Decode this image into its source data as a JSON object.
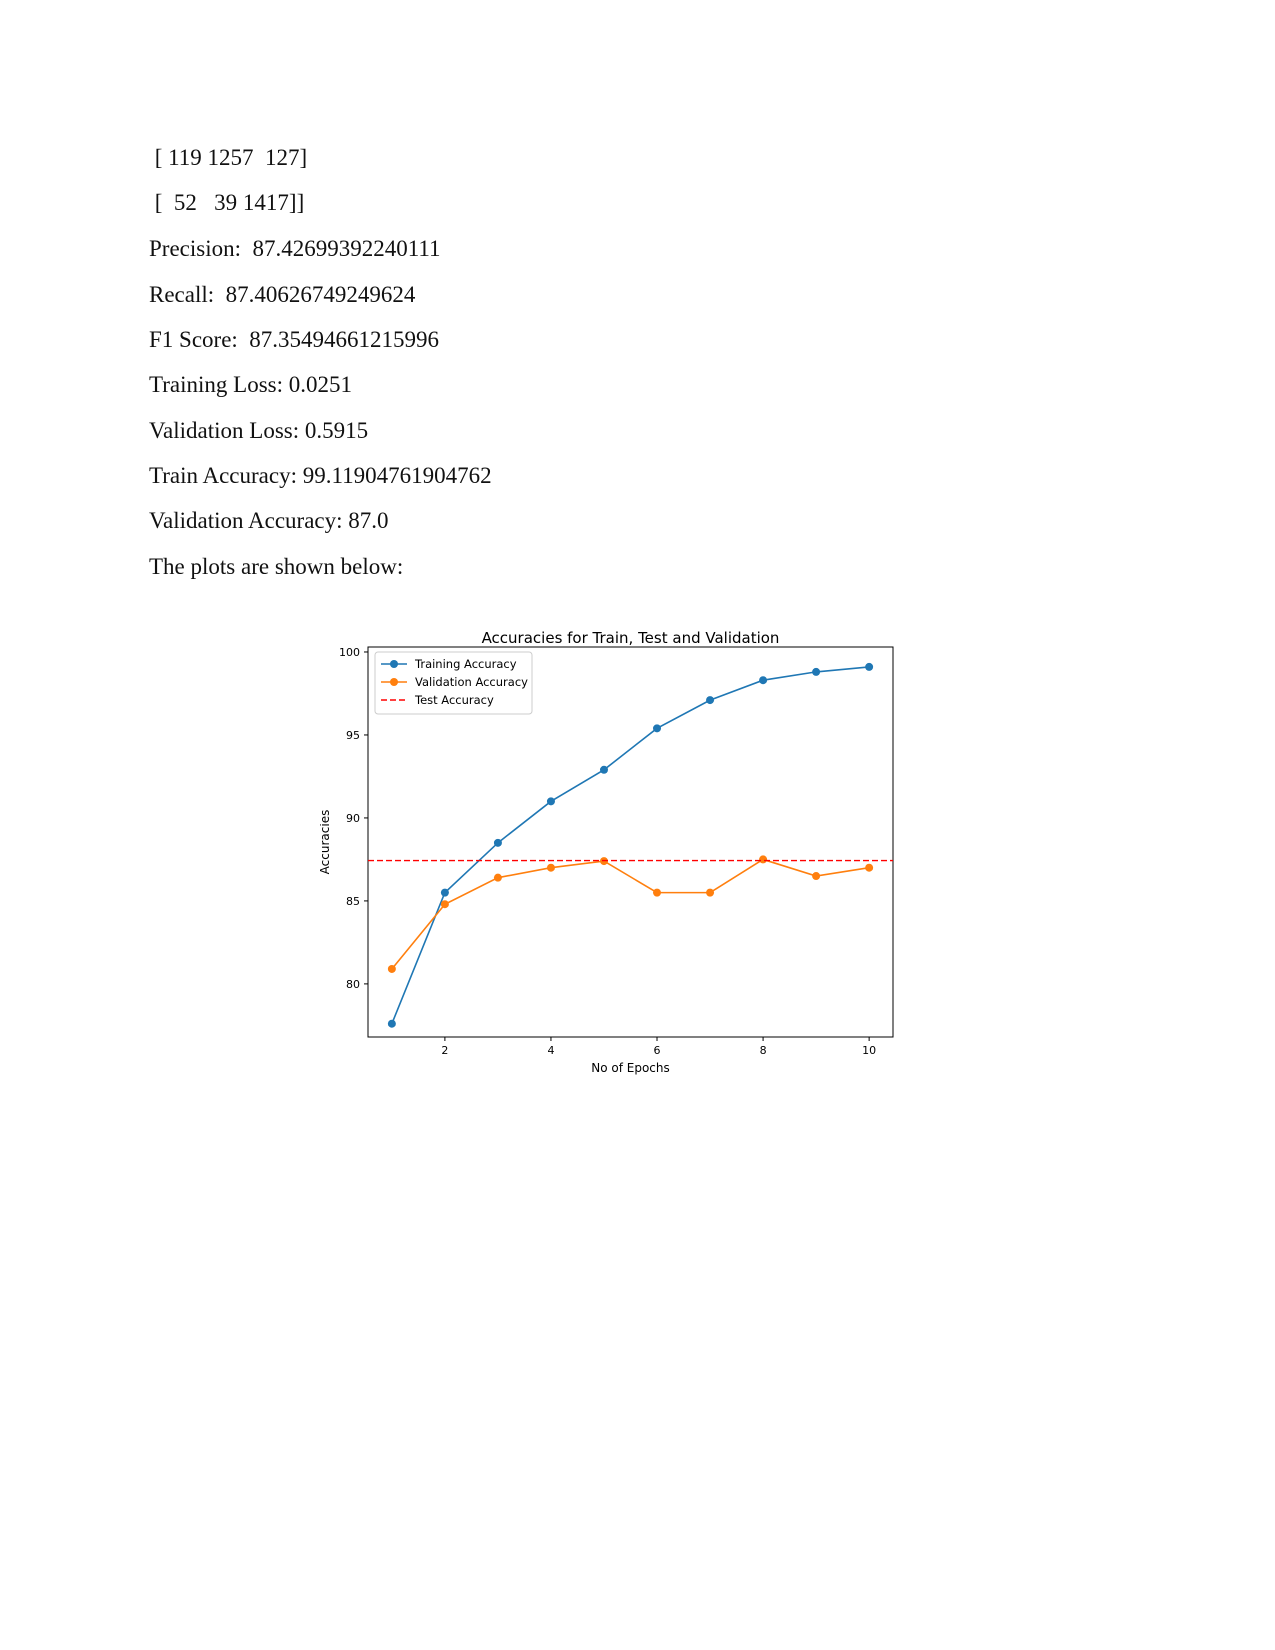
{
  "document": {
    "lines": [
      " [ 119 1257  127]",
      " [  52   39 1417]]",
      "Precision:  87.42699392240111",
      "Recall:  87.40626749249624",
      "F1 Score:  87.35494661215996",
      "Training Loss: 0.0251",
      "Validation Loss: 0.5915",
      "Train Accuracy: 99.11904761904762",
      "Validation Accuracy: 87.0",
      "The plots are shown below:"
    ]
  },
  "chart_data": {
    "type": "line",
    "title": "Accuracies for Train, Test and Validation",
    "xlabel": "No of Epochs",
    "ylabel": "Accuracies",
    "x": [
      1,
      2,
      3,
      4,
      5,
      6,
      7,
      8,
      9,
      10
    ],
    "xticks": [
      2,
      4,
      6,
      8,
      10
    ],
    "yticks": [
      80,
      85,
      90,
      95,
      100
    ],
    "xlim": [
      0.55,
      10.45
    ],
    "ylim": [
      76.8,
      100.3
    ],
    "grid": false,
    "legend_position": "upper-left",
    "series": [
      {
        "name": "Training Accuracy",
        "color": "#1f77b4",
        "marker": "circle",
        "style": "solid",
        "values": [
          77.6,
          85.5,
          88.5,
          91.0,
          92.9,
          95.4,
          97.1,
          98.3,
          98.8,
          99.1
        ]
      },
      {
        "name": "Validation Accuracy",
        "color": "#ff7f0e",
        "marker": "circle",
        "style": "solid",
        "values": [
          80.9,
          84.8,
          86.4,
          87.0,
          87.4,
          85.5,
          85.5,
          87.5,
          86.5,
          87.0
        ]
      },
      {
        "name": "Test Accuracy",
        "color": "#ff0000",
        "marker": "none",
        "style": "dashed",
        "constant": 87.43
      }
    ]
  }
}
